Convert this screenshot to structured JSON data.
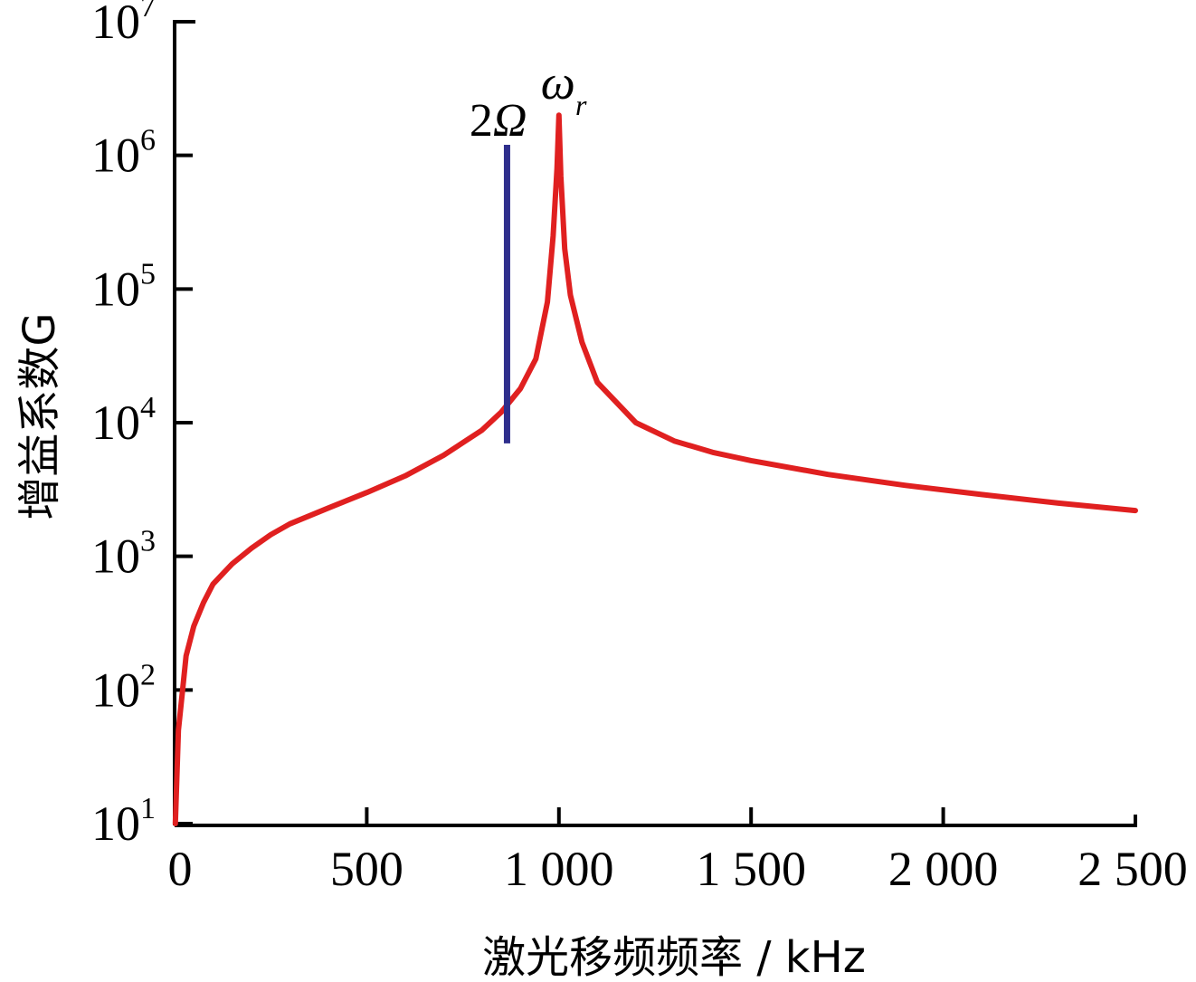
{
  "chart_data": {
    "type": "line",
    "xlabel": "激光移频频率 / kHz",
    "ylabel": "增益系数G",
    "xscale": "linear",
    "yscale": "log",
    "xlim": [
      0,
      2500
    ],
    "ylim": [
      10,
      10000000
    ],
    "x_ticks": [
      {
        "value": 0,
        "label": "0"
      },
      {
        "value": 500,
        "label": "500"
      },
      {
        "value": 1000,
        "label": "1 000"
      },
      {
        "value": 1500,
        "label": "1 500"
      },
      {
        "value": 2000,
        "label": "2 000"
      },
      {
        "value": 2500,
        "label": "2 500"
      }
    ],
    "y_ticks": [
      {
        "value": 10,
        "base": "10",
        "exp": "1"
      },
      {
        "value": 100,
        "base": "10",
        "exp": "2"
      },
      {
        "value": 1000,
        "base": "10",
        "exp": "3"
      },
      {
        "value": 10000,
        "base": "10",
        "exp": "4"
      },
      {
        "value": 100000,
        "base": "10",
        "exp": "5"
      },
      {
        "value": 1000000,
        "base": "10",
        "exp": "6"
      },
      {
        "value": 10000000,
        "base": "10",
        "exp": "7"
      }
    ],
    "grid": false,
    "legend": "none",
    "series": [
      {
        "color": "#e02020",
        "x": [
          2,
          10,
          20,
          30,
          50,
          75,
          100,
          150,
          200,
          250,
          300,
          400,
          500,
          600,
          700,
          800,
          850,
          900,
          940,
          970,
          985,
          995,
          1000,
          1005,
          1015,
          1030,
          1060,
          1100,
          1200,
          1300,
          1400,
          1500,
          1700,
          1900,
          2100,
          2300,
          2500
        ],
        "y": [
          10,
          50,
          95,
          180,
          300,
          450,
          620,
          880,
          1150,
          1450,
          1750,
          2300,
          3000,
          4000,
          5700,
          8800,
          12000,
          18000,
          30000,
          80000,
          250000,
          800000,
          2000000,
          700000,
          200000,
          90000,
          40000,
          20000,
          10000,
          7300,
          6000,
          5200,
          4100,
          3400,
          2900,
          2500,
          2200
        ]
      }
    ],
    "annotations": [
      {
        "name": "2Ω",
        "type": "vertical-line",
        "x": 865,
        "y_range": [
          7000,
          1200000
        ],
        "color": "#2e2e8c",
        "label_main": "2",
        "label_italic": "Ω"
      },
      {
        "name": "ωr",
        "type": "text",
        "x": 1000,
        "y": 2000000,
        "label_main": "ω",
        "label_sub": "r"
      }
    ]
  }
}
